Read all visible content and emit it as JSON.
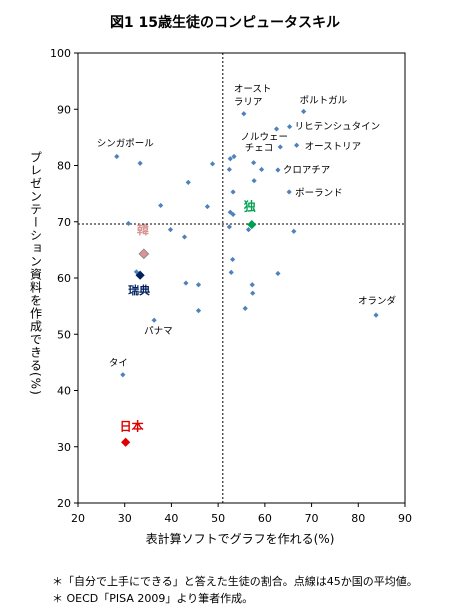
{
  "title": "図1  15歳生徒のコンピュータスキル",
  "notes": [
    "＊「自分で上手にできる」と答えた生徒の割合。点線は45か国の平均値。",
    "＊ OECD「PISA 2009」より筆者作成。"
  ],
  "chart_data": {
    "type": "scatter",
    "title": "図1  15歳生徒のコンピュータスキル",
    "xlabel": "表計算ソフトでグラフを作れる(%)",
    "ylabel": "プレゼンテーション資料を作成できる(%)",
    "xlim": [
      20,
      90
    ],
    "ylim": [
      20,
      100
    ],
    "xticks": [
      20,
      30,
      40,
      50,
      60,
      70,
      80,
      90
    ],
    "yticks": [
      20,
      30,
      40,
      50,
      60,
      70,
      80,
      90,
      100
    ],
    "grid": false,
    "reference_lines": {
      "x": 51,
      "y": 69.6
    },
    "colors": {
      "point": "#4f81bd",
      "japan": "#e00000",
      "korea": "#d99594",
      "germany": "#00a050",
      "sweden": "#002060"
    },
    "points": [
      {
        "x": 55.5,
        "y": 89.2,
        "label": "オーストラリア",
        "style": "normal"
      },
      {
        "x": 68.3,
        "y": 89.6,
        "label": "ポルトガル",
        "style": "normal"
      },
      {
        "x": 28.3,
        "y": 81.6,
        "label": "シンガポール",
        "style": "normal"
      },
      {
        "x": 33.3,
        "y": 80.4,
        "label": "",
        "style": "normal"
      },
      {
        "x": 62.5,
        "y": 86.5,
        "label": "ノルウェー",
        "style": "normal"
      },
      {
        "x": 65.3,
        "y": 86.9,
        "label": "リヒテンシュタイン",
        "style": "normal"
      },
      {
        "x": 63.3,
        "y": 83.3,
        "label": "チェコ",
        "style": "normal"
      },
      {
        "x": 66.8,
        "y": 83.6,
        "label": "オーストリア",
        "style": "normal"
      },
      {
        "x": 62.8,
        "y": 79.2,
        "label": "クロアチア",
        "style": "normal"
      },
      {
        "x": 65.2,
        "y": 75.3,
        "label": "ポーランド",
        "style": "normal"
      },
      {
        "x": 48.8,
        "y": 80.3,
        "label": "",
        "style": "normal"
      },
      {
        "x": 52.4,
        "y": 79.3,
        "label": "",
        "style": "normal"
      },
      {
        "x": 52.6,
        "y": 81.2,
        "label": "",
        "style": "normal"
      },
      {
        "x": 53.4,
        "y": 81.6,
        "label": "",
        "style": "normal"
      },
      {
        "x": 57.6,
        "y": 80.5,
        "label": "",
        "style": "normal"
      },
      {
        "x": 59.3,
        "y": 79.3,
        "label": "",
        "style": "normal"
      },
      {
        "x": 43.6,
        "y": 77.0,
        "label": "",
        "style": "normal"
      },
      {
        "x": 57.7,
        "y": 77.3,
        "label": "",
        "style": "normal"
      },
      {
        "x": 53.2,
        "y": 75.3,
        "label": "",
        "style": "normal"
      },
      {
        "x": 37.7,
        "y": 72.9,
        "label": "",
        "style": "normal"
      },
      {
        "x": 47.7,
        "y": 72.7,
        "label": "",
        "style": "normal"
      },
      {
        "x": 52.6,
        "y": 71.7,
        "label": "",
        "style": "normal"
      },
      {
        "x": 53.2,
        "y": 71.3,
        "label": "",
        "style": "normal"
      },
      {
        "x": 30.8,
        "y": 69.7,
        "label": "",
        "style": "normal"
      },
      {
        "x": 52.4,
        "y": 69.1,
        "label": "",
        "style": "normal"
      },
      {
        "x": 39.8,
        "y": 68.6,
        "label": "",
        "style": "normal"
      },
      {
        "x": 56.5,
        "y": 68.6,
        "label": "",
        "style": "normal"
      },
      {
        "x": 66.2,
        "y": 68.3,
        "label": "",
        "style": "normal"
      },
      {
        "x": 42.8,
        "y": 67.3,
        "label": "",
        "style": "normal"
      },
      {
        "x": 57.2,
        "y": 69.5,
        "label": "独",
        "style": "germany"
      },
      {
        "x": 34.1,
        "y": 64.3,
        "label": "韓",
        "style": "korea"
      },
      {
        "x": 53.1,
        "y": 63.3,
        "label": "",
        "style": "normal"
      },
      {
        "x": 52.8,
        "y": 61.0,
        "label": "",
        "style": "normal"
      },
      {
        "x": 32.5,
        "y": 61.1,
        "label": "",
        "style": "normal"
      },
      {
        "x": 62.8,
        "y": 60.8,
        "label": "",
        "style": "normal"
      },
      {
        "x": 33.3,
        "y": 60.5,
        "label": "瑞典",
        "style": "sweden"
      },
      {
        "x": 43.1,
        "y": 59.1,
        "label": "",
        "style": "normal"
      },
      {
        "x": 45.8,
        "y": 58.8,
        "label": "",
        "style": "normal"
      },
      {
        "x": 57.3,
        "y": 58.8,
        "label": "",
        "style": "normal"
      },
      {
        "x": 57.4,
        "y": 57.3,
        "label": "",
        "style": "normal"
      },
      {
        "x": 55.8,
        "y": 54.6,
        "label": "",
        "style": "normal"
      },
      {
        "x": 45.8,
        "y": 54.2,
        "label": "",
        "style": "normal"
      },
      {
        "x": 36.3,
        "y": 52.5,
        "label": "パナマ",
        "style": "normal"
      },
      {
        "x": 83.8,
        "y": 53.4,
        "label": "オランダ",
        "style": "normal"
      },
      {
        "x": 29.6,
        "y": 42.8,
        "label": "タイ",
        "style": "normal"
      },
      {
        "x": 30.2,
        "y": 30.8,
        "label": "日本",
        "style": "japan"
      }
    ]
  }
}
